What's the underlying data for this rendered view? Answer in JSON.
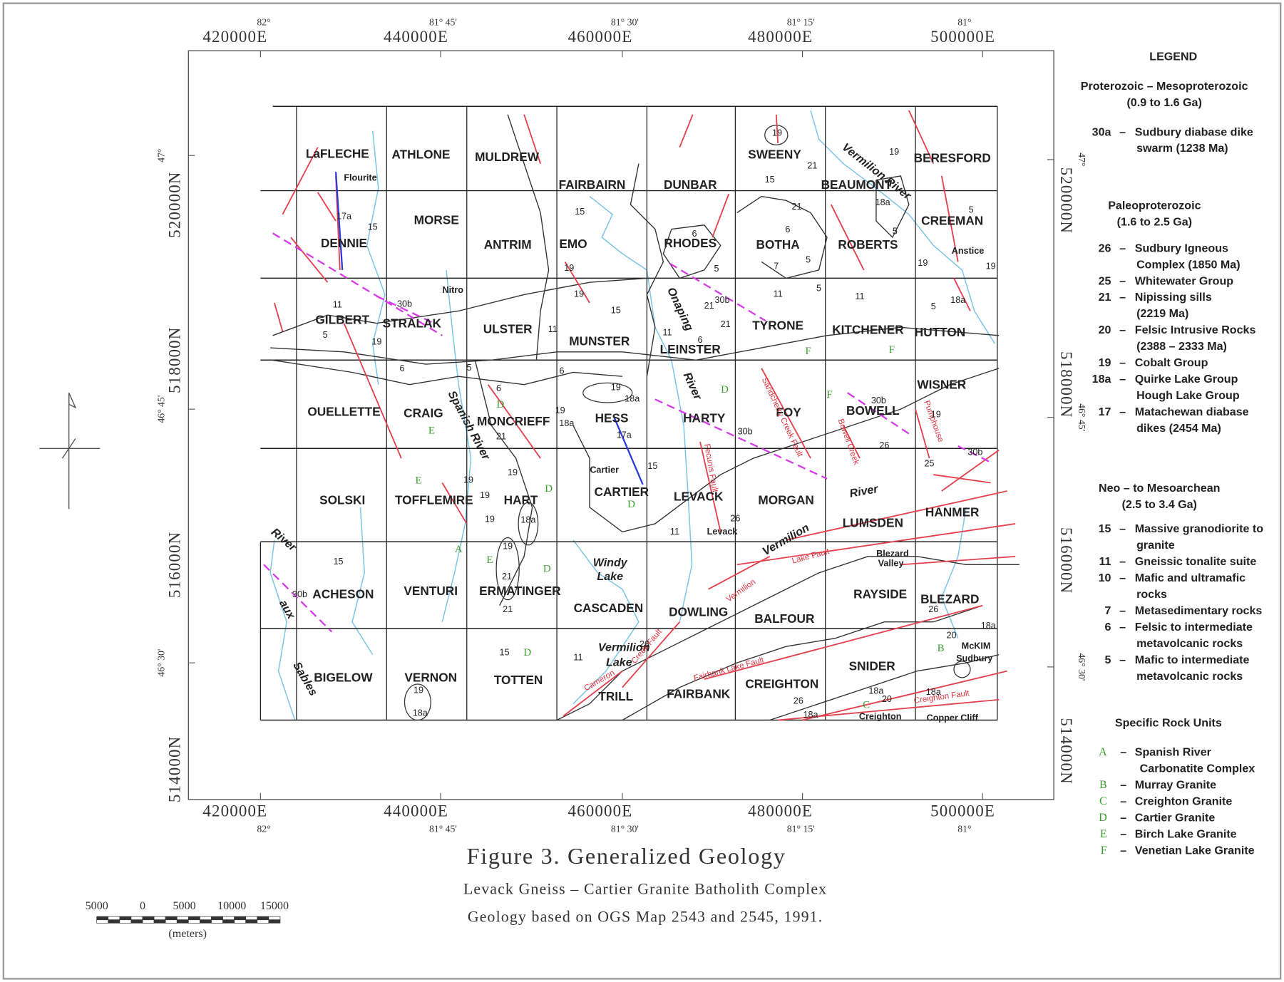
{
  "map": {
    "eastings": [
      "420000E",
      "440000E",
      "460000E",
      "480000E",
      "500000E"
    ],
    "longitudes": [
      "82°",
      "81° 45'",
      "81° 30'",
      "81° 15'",
      "81°"
    ],
    "northings": [
      "520000N",
      "518000N",
      "516000N",
      "514000N"
    ],
    "latitudes": [
      "47°",
      "46° 45'",
      "46° 30'"
    ],
    "townships": [
      "LaFLECHE",
      "ATHLONE",
      "MULDREW",
      "FAIRBAIRN",
      "DUNBAR",
      "SWEENY",
      "BEAUMONT",
      "BERESFORD",
      "DENNIE",
      "MORSE",
      "ANTRIM",
      "EMO",
      "RHODES",
      "BOTHA",
      "ROBERTS",
      "CREEMAN",
      "GILBERT",
      "STRALAK",
      "ULSTER",
      "MUNSTER",
      "LEINSTER",
      "TYRONE",
      "KITCHENER",
      "HUTTON",
      "OUELLETTE",
      "CRAIG",
      "MONCRIEFF",
      "HESS",
      "HARTY",
      "FOY",
      "BOWELL",
      "WISNER",
      "SOLSKI",
      "TOFFLEMIRE",
      "HART",
      "CARTIER",
      "LEVACK",
      "MORGAN",
      "LUMSDEN",
      "HANMER",
      "ACHESON",
      "VENTURI",
      "ERMATINGER",
      "CASCADEN",
      "DOWLING",
      "BALFOUR",
      "RAYSIDE",
      "BLEZARD",
      "BIGELOW",
      "VERNON",
      "TOTTEN",
      "TRILL",
      "FAIRBANK",
      "CREIGHTON",
      "SNIDER"
    ],
    "places": [
      "Flourite",
      "Nitro",
      "Cartier",
      "Levack",
      "Blezard",
      "Valley",
      "Anstice",
      "McKIM",
      "Sudbury",
      "Creighton",
      "Copper Cliff"
    ],
    "water_labels": [
      "Vermilion River",
      "Spanish River",
      "Onaping",
      "River",
      "Windy",
      "Lake",
      "Vermilion",
      "Lake",
      "Vermilion",
      "River",
      "River",
      "aux",
      "Sables"
    ],
    "fault_labels": [
      "Fairbank Lake Fault",
      "Lake Fault",
      "Creighton Fault",
      "Cameron",
      "Creek Fault",
      "Sandcherry Creek Fault",
      "Vermilion",
      "Fecunis Fault",
      "Bowell Creek",
      "Pumphouse"
    ],
    "unit_labels": [
      "19",
      "19",
      "21",
      "15",
      "18a",
      "21",
      "5",
      "6",
      "5",
      "5",
      "7",
      "19",
      "19",
      "5",
      "6",
      "11",
      "5",
      "11",
      "5",
      "18a",
      "15",
      "11",
      "11",
      "21",
      "21",
      "6",
      "17a",
      "15",
      "15",
      "19",
      "19",
      "11",
      "5",
      "19",
      "6",
      "5",
      "6",
      "6",
      "19",
      "18a",
      "17a",
      "18a",
      "19",
      "21",
      "19",
      "26",
      "25",
      "15",
      "19",
      "19",
      "19",
      "19",
      "18a",
      "19",
      "21",
      "21",
      "26",
      "11",
      "15",
      "15",
      "11",
      "26",
      "19",
      "18a",
      "26",
      "18a",
      "18a",
      "20",
      "18a",
      "26",
      "20",
      "18a",
      "30b",
      "30b",
      "30b",
      "30b",
      "30b",
      "30b"
    ],
    "rock_unit_letters": [
      "F",
      "F",
      "D",
      "F",
      "D",
      "E",
      "E",
      "D",
      "D",
      "A",
      "E",
      "D",
      "D",
      "B",
      "C"
    ]
  },
  "legend": {
    "title": "LEGEND",
    "separator": "–",
    "groups": [
      {
        "heading": "Proterozoic – Mesoproterozoic",
        "range": "(0.9 to 1.6 Ga)",
        "items": [
          {
            "code": "30a",
            "lines": [
              "Sudbury diabase dike",
              "swarm (1238 Ma)"
            ]
          }
        ]
      },
      {
        "heading": "Paleoproterozoic",
        "range": "(1.6 to 2.5 Ga)",
        "items": [
          {
            "code": "26",
            "lines": [
              "Sudbury Igneous",
              "Complex (1850 Ma)"
            ]
          },
          {
            "code": "25",
            "lines": [
              "Whitewater Group"
            ]
          },
          {
            "code": "21",
            "lines": [
              "Nipissing sills",
              "(2219 Ma)"
            ]
          },
          {
            "code": "20",
            "lines": [
              "Felsic Intrusive Rocks",
              "(2388 – 2333 Ma)"
            ]
          },
          {
            "code": "19",
            "lines": [
              "Cobalt Group"
            ]
          },
          {
            "code": "18a",
            "lines": [
              "Quirke Lake Group",
              "Hough Lake Group"
            ]
          },
          {
            "code": "17",
            "lines": [
              "Matachewan diabase",
              "dikes (2454 Ma)"
            ]
          }
        ]
      },
      {
        "heading": "Neo – to Mesoarchean",
        "range": "(2.5 to 3.4 Ga)",
        "items": [
          {
            "code": "15",
            "lines": [
              "Massive granodiorite to",
              "granite"
            ]
          },
          {
            "code": "11",
            "lines": [
              "Gneissic tonalite suite"
            ]
          },
          {
            "code": "10",
            "lines": [
              "Mafic and ultramafic",
              "rocks"
            ]
          },
          {
            "code": "7",
            "lines": [
              "Metasedimentary rocks"
            ]
          },
          {
            "code": "6",
            "lines": [
              "Felsic to intermediate",
              "metavolcanic rocks"
            ]
          },
          {
            "code": "5",
            "lines": [
              "Mafic to intermediate",
              "metavolcanic rocks"
            ]
          }
        ]
      },
      {
        "heading": "Specific Rock Units",
        "items": [
          {
            "code": "A",
            "lines": [
              "Spanish River",
              "Carbonatite Complex"
            ]
          },
          {
            "code": "B",
            "lines": [
              "Murray Granite"
            ]
          },
          {
            "code": "C",
            "lines": [
              "Creighton Granite"
            ]
          },
          {
            "code": "D",
            "lines": [
              "Cartier Granite"
            ]
          },
          {
            "code": "E",
            "lines": [
              "Birch Lake Granite"
            ]
          },
          {
            "code": "F",
            "lines": [
              "Venetian Lake Granite"
            ]
          }
        ]
      }
    ]
  },
  "scale_bar": {
    "labels": [
      5000,
      0,
      5000,
      10000,
      15000
    ],
    "unit": "(meters)"
  },
  "caption": {
    "title": "Figure 3. Generalized Geology",
    "subtitle": "Levack Gneiss – Cartier Granite Batholith Complex",
    "source": "Geology based on OGS Map 2543 and 2545, 1991."
  }
}
